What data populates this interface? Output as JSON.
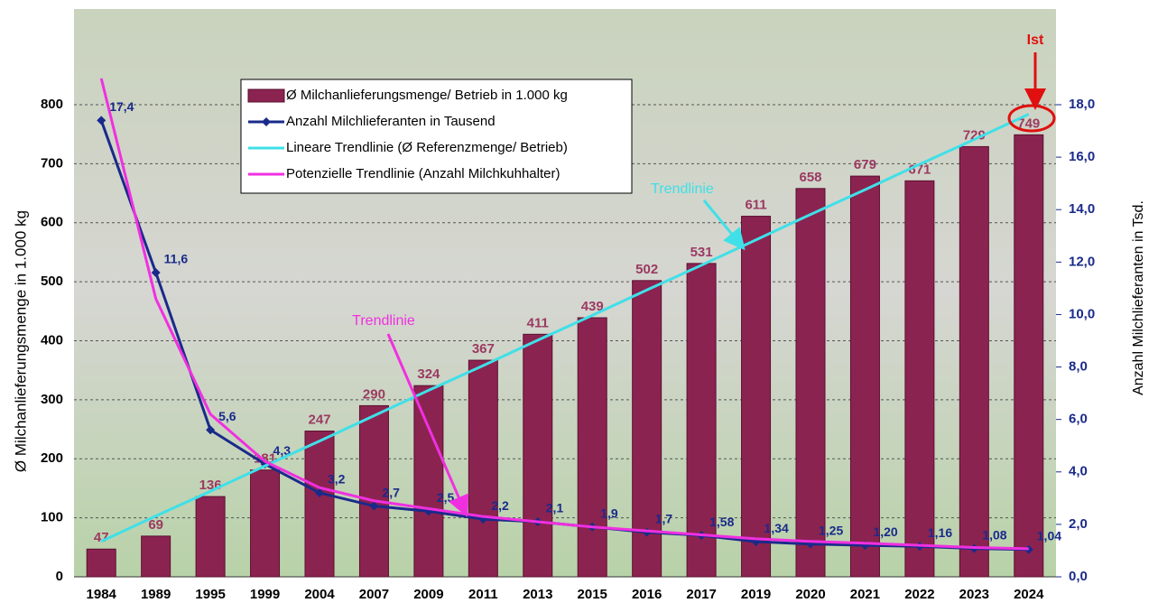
{
  "chart_data": {
    "type": "bar",
    "categories": [
      "1984",
      "1989",
      "1995",
      "1999",
      "2004",
      "2007",
      "2009",
      "2011",
      "2013",
      "2015",
      "2016",
      "2017",
      "2019",
      "2020",
      "2021",
      "2022",
      "2023",
      "2024"
    ],
    "y_label": "Ø Milchanlieferungsmenge in 1.000 kg",
    "y2_label": "Anzahl Milchlieferanten in Tsd.",
    "ylim": [
      0,
      800
    ],
    "yticks": [
      0,
      100,
      200,
      300,
      400,
      500,
      600,
      700,
      800
    ],
    "y2lim": [
      0,
      18
    ],
    "y2ticks": [
      {
        "value": 0,
        "label": "0,0"
      },
      {
        "value": 2,
        "label": "2,0"
      },
      {
        "value": 4,
        "label": "4,0"
      },
      {
        "value": 6,
        "label": "6,0"
      },
      {
        "value": 8,
        "label": "8,0"
      },
      {
        "value": 10,
        "label": "10,0"
      },
      {
        "value": 12,
        "label": "12,0"
      },
      {
        "value": 14,
        "label": "14,0"
      },
      {
        "value": 16,
        "label": "16,0"
      },
      {
        "value": 18,
        "label": "18,0"
      }
    ],
    "grid": true,
    "legend": "upper left",
    "series": [
      {
        "name": "Ø Milchanlieferungsmenge/ Betrieb in 1.000 kg",
        "type": "bar",
        "color": "#8b2350",
        "values": [
          47,
          69,
          136,
          181,
          247,
          290,
          324,
          367,
          411,
          439,
          502,
          531,
          611,
          658,
          679,
          671,
          729,
          749
        ]
      },
      {
        "name": "Anzahl Milchlieferanten in Tausend",
        "type": "line",
        "axis": "y2",
        "color": "#1a2a8a",
        "marker": "diamond",
        "values": [
          17.4,
          11.6,
          5.6,
          4.3,
          3.2,
          2.7,
          2.5,
          2.2,
          2.1,
          1.9,
          1.7,
          1.58,
          1.34,
          1.25,
          1.2,
          1.16,
          1.08,
          1.04
        ],
        "value_labels": [
          "17,4",
          "11,6",
          "5,6",
          "4,3",
          "3,2",
          "2,7",
          "2,5",
          "2,2",
          "2,1",
          "1,9",
          "1,7",
          "1,58",
          "1,34",
          "1,25",
          "1,20",
          "1,16",
          "1,08",
          "1,04"
        ]
      },
      {
        "name": "Lineare Trendlinie (Ø Referenzmenge/ Betrieb)",
        "type": "line",
        "color": "#3fe0e8",
        "values": [
          60,
          103,
          145,
          188,
          230,
          273,
          316,
          358,
          401,
          443,
          486,
          528,
          571,
          614,
          656,
          699,
          741,
          784
        ]
      },
      {
        "name": "Potenzielle Trendlinie (Anzahl Milchkuhhalter)",
        "type": "line",
        "axis": "y2",
        "color": "#f030e0",
        "values": [
          19,
          10.6,
          6.2,
          4.4,
          3.4,
          2.9,
          2.6,
          2.3,
          2.1,
          1.9,
          1.75,
          1.6,
          1.45,
          1.35,
          1.28,
          1.2,
          1.12,
          1.07
        ]
      }
    ],
    "annotations": [
      {
        "text": "Ist",
        "color": "#e01010"
      },
      {
        "text": "Trendlinie",
        "color": "#3fe0e8"
      },
      {
        "text": "Trendlinie",
        "color": "#f030e0"
      }
    ]
  }
}
